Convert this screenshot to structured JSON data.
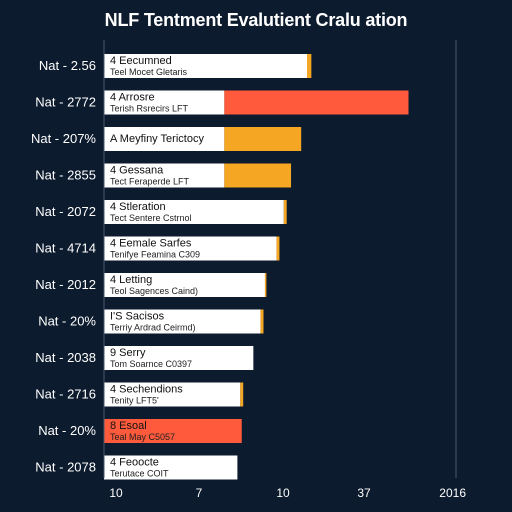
{
  "chart_data": {
    "type": "bar",
    "title": "NLF Tentment Evalutient Cralu ation",
    "xlabel": "",
    "ylabel": "",
    "xticks": [
      "10",
      "7",
      "10",
      "37",
      "2016"
    ],
    "grid": false,
    "rows": [
      {
        "label": "Nat - 2.56",
        "title": "4 Eecumned",
        "subtitle": "Teel Mocet Gletaris",
        "white": 14,
        "accent": 0.3,
        "accent_color": "#f5a623"
      },
      {
        "label": "Nat - 2772",
        "title": "4 Arrosre",
        "subtitle": "Terish Rsrecirs LFT",
        "white": 8.3,
        "accent": 12.7,
        "accent_color": "#ff5a3c"
      },
      {
        "label": "Nat - 207%",
        "title": "A Meyfiny Terictocy",
        "subtitle": "",
        "white": 8.3,
        "accent": 5.3,
        "accent_color": "#f5a623"
      },
      {
        "label": "Nat - 2855",
        "title": "4 Gessana",
        "subtitle": "Tect Feraperde LFT",
        "white": 8.3,
        "accent": 4.6,
        "accent_color": "#f5a623"
      },
      {
        "label": "Nat - 2072",
        "title": "4 Stleration",
        "subtitle": "Tect Sentere Cstrnol",
        "white": 12.4,
        "accent": 0.2,
        "accent_color": "#f5a623"
      },
      {
        "label": "Nat - 4714",
        "title": "4 Eemale Sarfes",
        "subtitle": "Tenifye Feamina C309",
        "white": 11.9,
        "accent": 0.2,
        "accent_color": "#f5a623"
      },
      {
        "label": "Nat - 2012",
        "title": "4 Letting",
        "subtitle": "Teol Sagences Caind)",
        "white": 11.1,
        "accent": 0.1,
        "accent_color": "#f5a623"
      },
      {
        "label": "Nat - 20%",
        "title": "I'S Sacisos",
        "subtitle": "Terriy Ardrad Ceirmd)",
        "white": 10.8,
        "accent": 0.2,
        "accent_color": "#f5a623"
      },
      {
        "label": "Nat - 2038",
        "title": "9 Serry",
        "subtitle": "Tom Soarnce C0397",
        "white": 10.3,
        "accent": 0,
        "accent_color": "#f5a623"
      },
      {
        "label": "Nat - 2716",
        "title": "4 Sechendions",
        "subtitle": "Tenity LFT5'",
        "white": 9.4,
        "accent": 0.2,
        "accent_color": "#f5a623"
      },
      {
        "label": "Nat - 20%",
        "title": "8 Esoal",
        "subtitle": "Teal May C5057",
        "white": 0,
        "accent": 9.5,
        "accent_color": "#ff5a3c"
      },
      {
        "label": "Nat - 2078",
        "title": "4 Feoocte",
        "subtitle": "Terutace COIT",
        "white": 9.2,
        "accent": 0,
        "accent_color": "#f5a623"
      }
    ]
  }
}
